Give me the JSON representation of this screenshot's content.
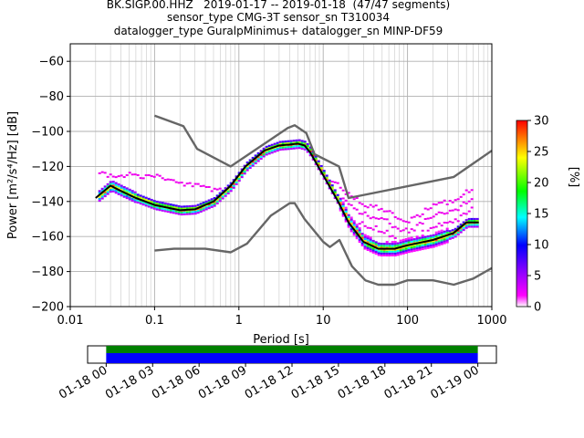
{
  "title": {
    "line1": "BK.SIGP.00.HHZ   2019-01-17 -- 2019-01-18  (47/47 segments)",
    "line2": "sensor_type CMG-3T sensor_sn T310034",
    "line3": "datalogger_type GuralpMinimus+ datalogger_sn MINP-DF59"
  },
  "chart_data": {
    "type": "heatmap",
    "xlabel": "Period [s]",
    "ylabel": "Power [m²/s⁴/Hz] [dB]",
    "xscale": "log",
    "xlim": [
      0.01,
      1000
    ],
    "ylim": [
      -200,
      -50
    ],
    "grid": true,
    "xticks": [
      "0.01",
      "0.1",
      "1",
      "10",
      "100",
      "1000"
    ],
    "xtick_values": [
      0.01,
      0.1,
      1,
      10,
      100,
      1000
    ],
    "yticks": [
      -200,
      -180,
      -160,
      -140,
      -120,
      -100,
      -80,
      -60
    ],
    "colorbar": {
      "label": "[%]",
      "min": 0,
      "max": 30,
      "ticks": [
        0,
        5,
        10,
        15,
        20,
        25,
        30
      ]
    },
    "series": [
      {
        "role": "high-noise-model",
        "color": "#666666",
        "points": [
          [
            0.1,
            -91
          ],
          [
            0.22,
            -97
          ],
          [
            0.32,
            -110
          ],
          [
            0.8,
            -120
          ],
          [
            3.8,
            -98
          ],
          [
            4.6,
            -96.5
          ],
          [
            6.3,
            -101
          ],
          [
            7.9,
            -113
          ],
          [
            15.4,
            -120
          ],
          [
            20,
            -138
          ],
          [
            354,
            -126
          ],
          [
            1000,
            -111
          ]
        ]
      },
      {
        "role": "low-noise-model",
        "color": "#666666",
        "points": [
          [
            0.1,
            -168
          ],
          [
            0.17,
            -167
          ],
          [
            0.4,
            -167
          ],
          [
            0.8,
            -169
          ],
          [
            1.25,
            -164
          ],
          [
            2.4,
            -148
          ],
          [
            4,
            -141
          ],
          [
            4.6,
            -141
          ],
          [
            6,
            -150
          ],
          [
            10,
            -163
          ],
          [
            12,
            -166
          ],
          [
            15.6,
            -162
          ],
          [
            21.9,
            -177
          ],
          [
            31.6,
            -185
          ],
          [
            45,
            -187.5
          ],
          [
            70,
            -187.5
          ],
          [
            100,
            -185
          ],
          [
            201,
            -185
          ],
          [
            354,
            -187.5
          ],
          [
            602,
            -184
          ],
          [
            1000,
            -178
          ]
        ]
      },
      {
        "role": "mean-psd",
        "color": "#000000",
        "points": [
          [
            0.02,
            -138
          ],
          [
            0.03,
            -131
          ],
          [
            0.04,
            -134
          ],
          [
            0.06,
            -138
          ],
          [
            0.1,
            -142
          ],
          [
            0.2,
            -145
          ],
          [
            0.3,
            -144.5
          ],
          [
            0.5,
            -140
          ],
          [
            0.8,
            -131
          ],
          [
            1.2,
            -120
          ],
          [
            2,
            -111
          ],
          [
            3,
            -108
          ],
          [
            4,
            -107.5
          ],
          [
            5,
            -107
          ],
          [
            6,
            -108
          ],
          [
            7,
            -112
          ],
          [
            10,
            -125
          ],
          [
            15,
            -140
          ],
          [
            20,
            -152
          ],
          [
            30,
            -163
          ],
          [
            45,
            -167
          ],
          [
            70,
            -167
          ],
          [
            100,
            -165
          ],
          [
            200,
            -162
          ],
          [
            350,
            -158
          ],
          [
            500,
            -152
          ],
          [
            700,
            -152
          ]
        ]
      },
      {
        "role": "histogram-upper-cloud",
        "color": "#ff00ff",
        "points": [
          [
            0.02,
            -123
          ],
          [
            0.1,
            -124
          ],
          [
            0.2,
            -128
          ],
          [
            0.5,
            -132
          ],
          [
            8,
            -118
          ],
          [
            10,
            -122
          ],
          [
            15,
            -130
          ],
          [
            20,
            -135
          ],
          [
            30,
            -140
          ],
          [
            50,
            -143
          ],
          [
            70,
            -147
          ],
          [
            100,
            -150
          ],
          [
            200,
            -140
          ],
          [
            350,
            -138
          ],
          [
            600,
            -130
          ]
        ]
      }
    ]
  },
  "time_axis": {
    "ticks": [
      "01-18 00",
      "01-18 03",
      "01-18 06",
      "01-18 09",
      "01-18 12",
      "01-18 15",
      "01-18 18",
      "01-18 21",
      "01-19 00"
    ],
    "coverage": [
      {
        "name": "data",
        "color": "#0000ff",
        "start_hour": 0,
        "end_hour": 24
      },
      {
        "name": "gap-free",
        "color": "#008000",
        "start_hour": 0,
        "end_hour": 24
      }
    ],
    "hour_range": [
      -1.2,
      25.2
    ]
  }
}
